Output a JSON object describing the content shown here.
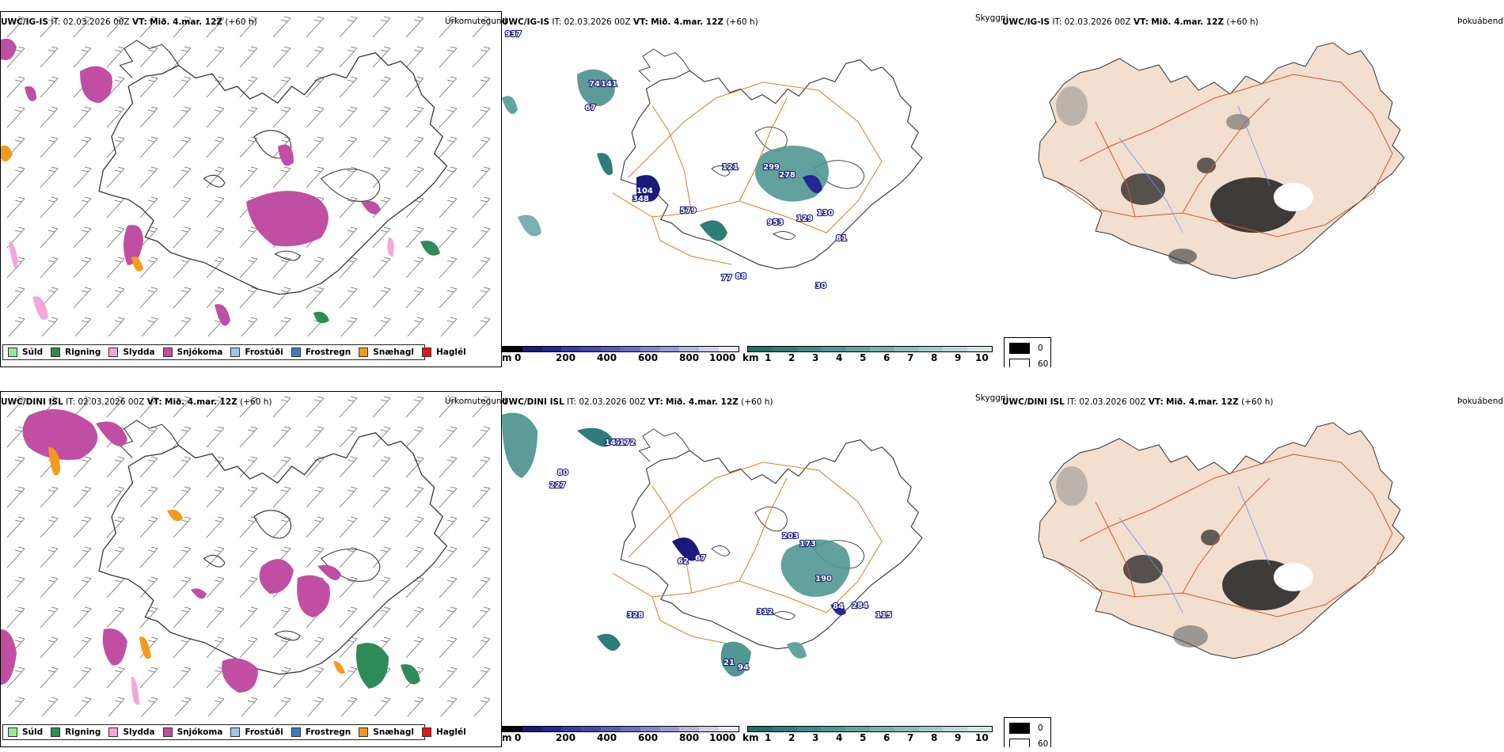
{
  "rows": [
    {
      "model": "UWC/IG-IS",
      "it_label": "IT:",
      "it_value": "02.03.2026 00Z",
      "vt_label": "VT:",
      "vt_value": "Mið. 4.mar. 12Z",
      "lead": "(+60 h)",
      "ptype_title": "Úrkomutegund",
      "vis_title": "Skyggni",
      "fog_title": "Þokuábendi",
      "vis_values": [
        "937",
        "74",
        "141",
        "67",
        "104",
        "121",
        "299",
        "278",
        "348",
        "579",
        "130",
        "953",
        "129",
        "81",
        "77",
        "88",
        "30"
      ]
    },
    {
      "model": "UWC/DINI ISL",
      "it_label": "IT:",
      "it_value": "02.03.2026 00Z",
      "vt_label": "VT:",
      "vt_value": "Mið. 4.mar. 12Z",
      "lead": "(+60 h)",
      "ptype_title": "Úrkomutegund",
      "vis_title": "Skyggni",
      "fog_title": "Þokuábendi",
      "vis_values": [
        "147",
        "172",
        "80",
        "227",
        "62",
        "67",
        "203",
        "173",
        "190",
        "84",
        "284",
        "115",
        "328",
        "312",
        "21",
        "94"
      ]
    }
  ],
  "ptype_legend": [
    {
      "label": "Súld",
      "color": "#90ee90"
    },
    {
      "label": "Rigning",
      "color": "#2e8b57"
    },
    {
      "label": "Slydda",
      "color": "#f4a6d7"
    },
    {
      "label": "Snjókoma",
      "color": "#c04fa3"
    },
    {
      "label": "Frostúði",
      "color": "#9cc8f0"
    },
    {
      "label": "Frostregn",
      "color": "#3a7fc0"
    },
    {
      "label": "Snæhagl",
      "color": "#f49a1a"
    },
    {
      "label": "Haglél",
      "color": "#e01515"
    }
  ],
  "vis_scale_m": {
    "unit": "m",
    "ticks": [
      "0",
      "200",
      "400",
      "600",
      "800",
      "1000"
    ],
    "colors": [
      "#000000",
      "#1a1a7a",
      "#262696",
      "#3a3aa4",
      "#4848ad",
      "#5a5ab6",
      "#6e6ebf",
      "#8585c9",
      "#9a9ad3",
      "#b5b5df",
      "#cfcfe9",
      "#e8e8f4"
    ]
  },
  "vis_scale_km": {
    "unit": "km",
    "ticks": [
      "1",
      "2",
      "3",
      "4",
      "5",
      "6",
      "7",
      "8",
      "9",
      "10"
    ],
    "colors": [
      "#1f6f6a",
      "#2e7d78",
      "#3f8a85",
      "#519792",
      "#64a49f",
      "#78b1ad",
      "#8dbeba",
      "#a3cbc8",
      "#bad8d6",
      "#d2e6e4"
    ]
  },
  "fog_legend": [
    {
      "value": "0",
      "color": "#000000"
    },
    {
      "value": "60",
      "color": "#ffffff"
    }
  ]
}
